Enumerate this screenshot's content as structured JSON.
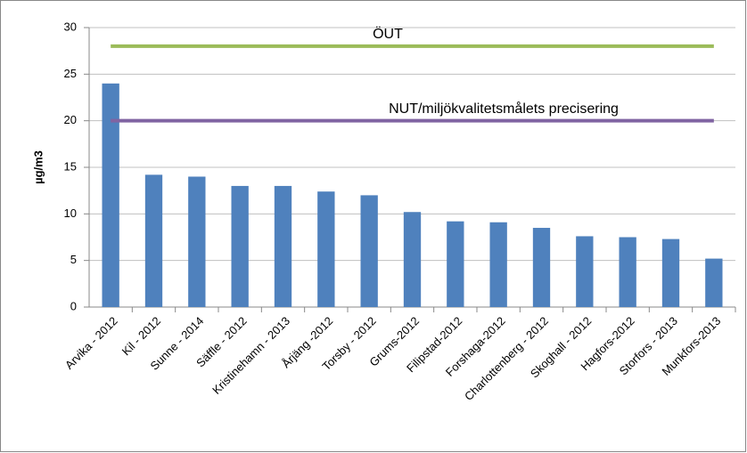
{
  "chart_data": {
    "type": "bar",
    "ylabel": "µg/m3",
    "categories": [
      "Arvika - 2012",
      "Kil - 2012",
      "Sunne - 2014",
      "Säffle - 2012",
      "Kristinehamn - 2013",
      "Årjäng -2012",
      "Torsby - 2012",
      "Grums-2012",
      "Filipstad-2012",
      "Forshaga-2012",
      "Charlottenberg - 2012",
      "Skoghall - 2012",
      "Hagfors-2012",
      "Storfors - 2013",
      "Munkfors-2013"
    ],
    "values": [
      24,
      14.2,
      14.0,
      13.0,
      13.0,
      12.4,
      12.0,
      10.2,
      9.2,
      9.1,
      8.5,
      7.6,
      7.5,
      7.3,
      5.2
    ],
    "color": "#4f81bd",
    "ylim": [
      0,
      30
    ],
    "yticks": [
      0,
      5,
      10,
      15,
      20,
      25,
      30
    ],
    "grid": true,
    "reference_lines": [
      {
        "label": "ÖUT",
        "value": 28,
        "color": "#9bbb59"
      },
      {
        "label": "NUT/miljökvalitetsmålets precisering",
        "value": 20,
        "color": "#8064a2"
      }
    ]
  }
}
